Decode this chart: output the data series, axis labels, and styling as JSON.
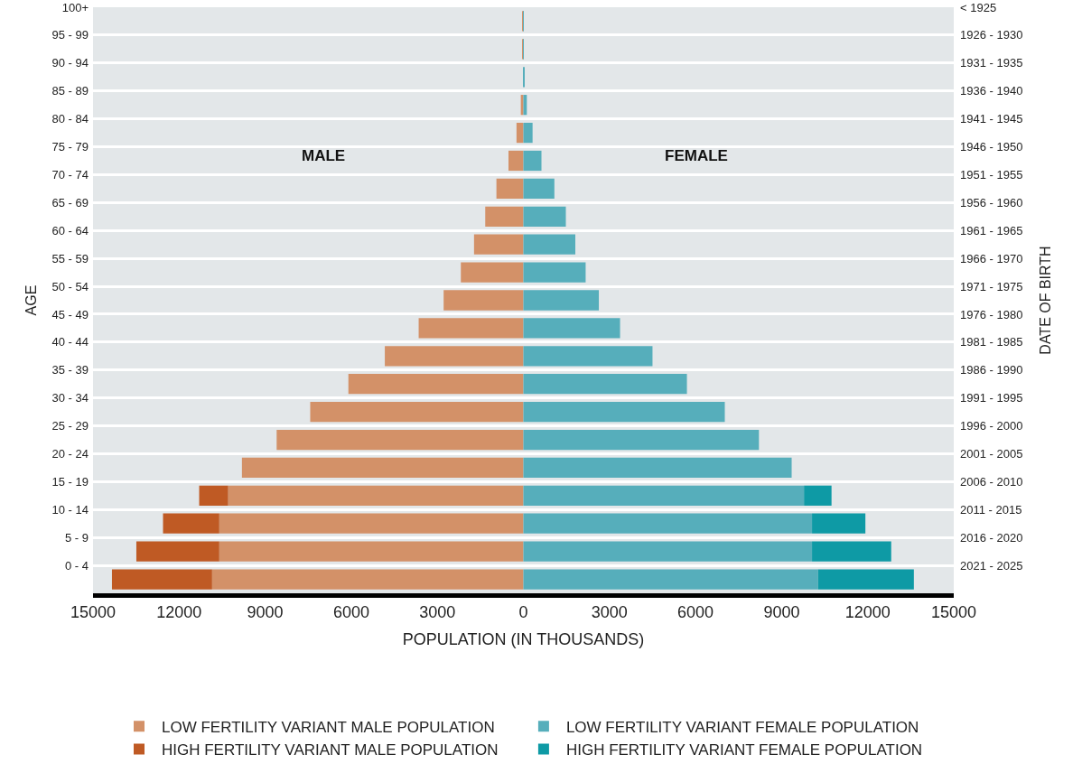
{
  "chart_data": {
    "type": "bar",
    "orientation": "horizontal",
    "stacked": true,
    "categories": [
      "100+",
      "95 - 99",
      "90 - 94",
      "85 - 89",
      "80 - 84",
      "75 - 79",
      "70 - 74",
      "65 - 69",
      "60 - 64",
      "55 - 59",
      "50 - 54",
      "45 - 49",
      "40 - 44",
      "35 - 39",
      "30 - 34",
      "25 - 29",
      "20 - 24",
      "15 - 19",
      "10 - 14",
      "5 - 9",
      "0 - 4"
    ],
    "y2_categories": [
      "< 1925",
      "1926 - 1930",
      "1931 - 1935",
      "1936 - 1940",
      "1941 - 1945",
      "1946 - 1950",
      "1951 - 1955",
      "1956 - 1960",
      "1961 - 1965",
      "1966 - 1970",
      "1971 - 1975",
      "1976 - 1980",
      "1981 - 1985",
      "1986 - 1990",
      "1991 - 1995",
      "1996 - 2000",
      "2001 - 2005",
      "2006 - 2010",
      "2011 - 2015",
      "2016 - 2020",
      "2021 - 2025"
    ],
    "series": [
      {
        "name": "LOW FERTILITY VARIANT MALE POPULATION",
        "color": "#d39168",
        "values": [
          -20,
          -20,
          null,
          -90,
          -240,
          -520,
          -940,
          -1330,
          -1720,
          -2180,
          -2780,
          -3650,
          -4830,
          -6100,
          -7430,
          -8600,
          -9810,
          -10290,
          -10600,
          -10600,
          -10850
        ]
      },
      {
        "name": "HIGH FERTILITY VARIANT MALE POPULATION",
        "color": "#bf5a24",
        "values": [
          null,
          null,
          null,
          null,
          null,
          null,
          null,
          null,
          null,
          null,
          null,
          null,
          null,
          null,
          null,
          null,
          null,
          -1010,
          -1960,
          -2890,
          -3490
        ]
      },
      {
        "name": "LOW FERTILITY VARIANT FEMALE POPULATION",
        "color": "#56aebb",
        "values": [
          10,
          10,
          30,
          120,
          320,
          630,
          1080,
          1480,
          1810,
          2170,
          2630,
          3370,
          4500,
          5700,
          7020,
          8210,
          9350,
          9780,
          10060,
          10060,
          10270
        ]
      },
      {
        "name": "HIGH FERTILITY VARIANT FEMALE POPULATION",
        "color": "#0e9aa5",
        "values": [
          null,
          null,
          null,
          null,
          null,
          null,
          null,
          null,
          null,
          null,
          null,
          null,
          null,
          null,
          null,
          null,
          null,
          960,
          1860,
          2760,
          3340
        ]
      }
    ],
    "xlim": [
      -15000,
      15000
    ],
    "xticks": [
      {
        "value": -15000,
        "label": "15000"
      },
      {
        "value": -12000,
        "label": "12000"
      },
      {
        "value": -9000,
        "label": "9000"
      },
      {
        "value": -6000,
        "label": "6000"
      },
      {
        "value": -3000,
        "label": "3000"
      },
      0,
      3000,
      6000,
      9000,
      12000,
      15000
    ],
    "xlabel": "POPULATION (IN THOUSANDS)",
    "ylabel": "AGE",
    "y2label": "DATE OF BIRTH",
    "annotations": [
      "MALE",
      "FEMALE"
    ],
    "grid": "y",
    "legend": "bottom"
  }
}
